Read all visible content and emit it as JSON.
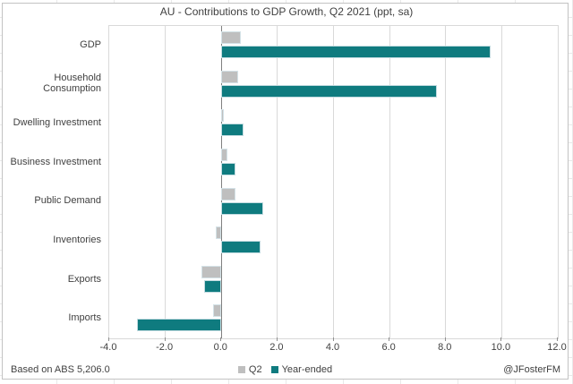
{
  "title": "AU - Contributions to GDP Growth, Q2 2021 (ppt, sa)",
  "footer": {
    "source": "Based on ABS 5,206.0",
    "credit": "@JFosterFM"
  },
  "colors": {
    "q2_bar": "#bfbfbf",
    "year_ended_bar": "#0f7b7f",
    "gridline": "#d9d9d9",
    "zero_line": "#808080",
    "text": "#404040"
  },
  "chart_data": {
    "type": "bar",
    "orientation": "horizontal",
    "title": "AU - Contributions to GDP Growth, Q2 2021 (ppt, sa)",
    "categories": [
      "GDP",
      "Household Consumption",
      "Dwelling Investment",
      "Business Investment",
      "Public Demand",
      "Inventories",
      "Exports",
      "Imports"
    ],
    "series": [
      {
        "name": "Q2",
        "color": "#bfbfbf",
        "values": [
          0.7,
          0.6,
          0.1,
          0.2,
          0.5,
          -0.2,
          -0.7,
          -0.3
        ]
      },
      {
        "name": "Year-ended",
        "color": "#0f7b7f",
        "values": [
          9.6,
          7.7,
          0.8,
          0.5,
          1.5,
          1.4,
          -0.6,
          -3.0
        ]
      }
    ],
    "xlim": [
      -4.0,
      12.0
    ],
    "x_tick_labels": [
      "-4.0",
      "-2.0",
      "0.0",
      "2.0",
      "4.0",
      "6.0",
      "8.0",
      "10.0",
      "12.0"
    ],
    "grid": true,
    "legend_position": "bottom-center",
    "xlabel": "",
    "ylabel": ""
  }
}
